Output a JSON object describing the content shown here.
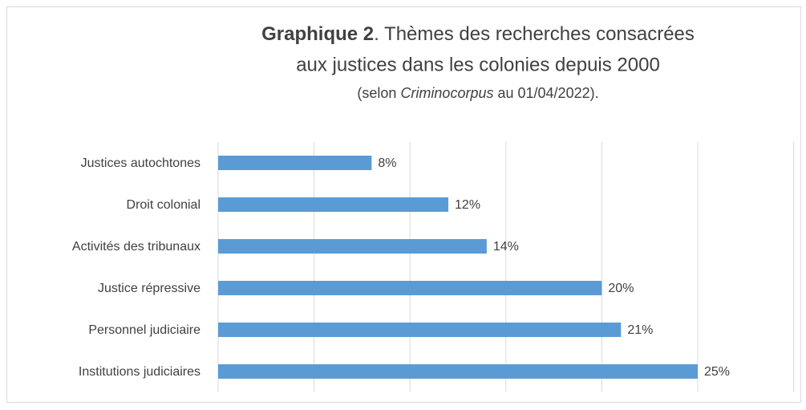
{
  "chart_data": {
    "type": "bar",
    "orientation": "horizontal",
    "title": {
      "bold": "Graphique 2",
      "line1": ". Thèmes des recherches consacrées",
      "line2": "aux justices dans les colonies depuis 2000"
    },
    "subtitle": {
      "before": "(selon ",
      "italic": "Criminocorpus",
      "after": " au 01/04/2022)."
    },
    "categories": [
      "Justices autochtones",
      "Droit colonial",
      "Activités des tribunaux",
      "Justice répressive",
      "Personnel judiciaire",
      "Institutions judiciaires"
    ],
    "values": [
      8,
      12,
      14,
      20,
      21,
      25
    ],
    "value_labels": [
      "8%",
      "12%",
      "14%",
      "20%",
      "21%",
      "25%"
    ],
    "color": "#5b9bd5",
    "xlim": [
      0,
      30
    ],
    "xticks": [
      0,
      5,
      10,
      15,
      20,
      25,
      30
    ],
    "grid": true
  }
}
